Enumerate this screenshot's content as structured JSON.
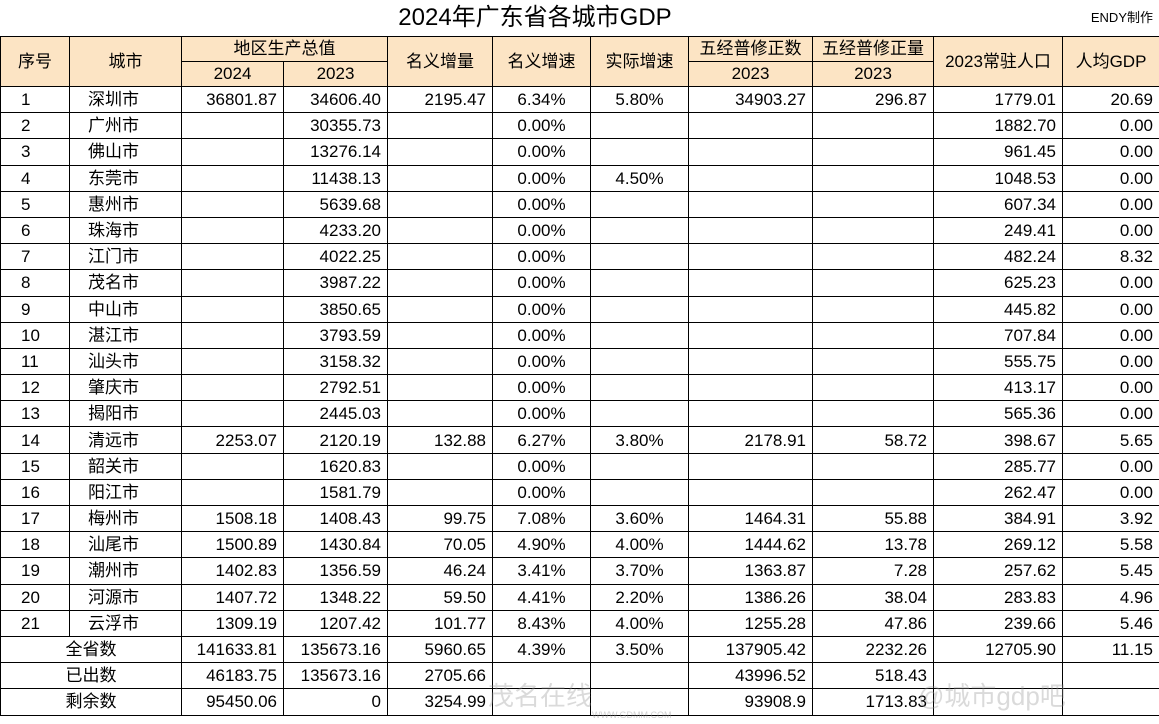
{
  "title": "2024年广东省各城市GDP",
  "credit": "ENDY制作",
  "headers": {
    "index": "序号",
    "city": "城市",
    "gdp": "地区生产总值",
    "gdp_2024": "2024",
    "gdp_2023": "2023",
    "nominal_increase": "名义增量",
    "nominal_growth": "名义增速",
    "real_growth": "实际增速",
    "revised_value": "五经普修正数",
    "revised_value_year": "2023",
    "revised_amount": "五经普修正量",
    "revised_amount_year": "2023",
    "population": "2023常驻人口",
    "per_capita": "人均GDP"
  },
  "rows": [
    [
      "1",
      "深圳市",
      "36801.87",
      "34606.40",
      "2195.47",
      "6.34%",
      "5.80%",
      "34903.27",
      "296.87",
      "1779.01",
      "20.69"
    ],
    [
      "2",
      "广州市",
      "",
      "30355.73",
      "",
      "0.00%",
      "",
      "",
      "",
      "1882.70",
      "0.00"
    ],
    [
      "3",
      "佛山市",
      "",
      "13276.14",
      "",
      "0.00%",
      "",
      "",
      "",
      "961.45",
      "0.00"
    ],
    [
      "4",
      "东莞市",
      "",
      "11438.13",
      "",
      "0.00%",
      "4.50%",
      "",
      "",
      "1048.53",
      "0.00"
    ],
    [
      "5",
      "惠州市",
      "",
      "5639.68",
      "",
      "0.00%",
      "",
      "",
      "",
      "607.34",
      "0.00"
    ],
    [
      "6",
      "珠海市",
      "",
      "4233.20",
      "",
      "0.00%",
      "",
      "",
      "",
      "249.41",
      "0.00"
    ],
    [
      "7",
      "江门市",
      "",
      "4022.25",
      "",
      "0.00%",
      "",
      "",
      "",
      "482.24",
      "8.32"
    ],
    [
      "8",
      "茂名市",
      "",
      "3987.22",
      "",
      "0.00%",
      "",
      "",
      "",
      "625.23",
      "0.00"
    ],
    [
      "9",
      "中山市",
      "",
      "3850.65",
      "",
      "0.00%",
      "",
      "",
      "",
      "445.82",
      "0.00"
    ],
    [
      "10",
      "湛江市",
      "",
      "3793.59",
      "",
      "0.00%",
      "",
      "",
      "",
      "707.84",
      "0.00"
    ],
    [
      "11",
      "汕头市",
      "",
      "3158.32",
      "",
      "0.00%",
      "",
      "",
      "",
      "555.75",
      "0.00"
    ],
    [
      "12",
      "肇庆市",
      "",
      "2792.51",
      "",
      "0.00%",
      "",
      "",
      "",
      "413.17",
      "0.00"
    ],
    [
      "13",
      "揭阳市",
      "",
      "2445.03",
      "",
      "0.00%",
      "",
      "",
      "",
      "565.36",
      "0.00"
    ],
    [
      "14",
      "清远市",
      "2253.07",
      "2120.19",
      "132.88",
      "6.27%",
      "3.80%",
      "2178.91",
      "58.72",
      "398.67",
      "5.65"
    ],
    [
      "15",
      "韶关市",
      "",
      "1620.83",
      "",
      "0.00%",
      "",
      "",
      "",
      "285.77",
      "0.00"
    ],
    [
      "16",
      "阳江市",
      "",
      "1581.79",
      "",
      "0.00%",
      "",
      "",
      "",
      "262.47",
      "0.00"
    ],
    [
      "17",
      "梅州市",
      "1508.18",
      "1408.43",
      "99.75",
      "7.08%",
      "3.60%",
      "1464.31",
      "55.88",
      "384.91",
      "3.92"
    ],
    [
      "18",
      "汕尾市",
      "1500.89",
      "1430.84",
      "70.05",
      "4.90%",
      "4.00%",
      "1444.62",
      "13.78",
      "269.12",
      "5.58"
    ],
    [
      "19",
      "潮州市",
      "1402.83",
      "1356.59",
      "46.24",
      "3.41%",
      "3.70%",
      "1363.87",
      "7.28",
      "257.62",
      "5.45"
    ],
    [
      "20",
      "河源市",
      "1407.72",
      "1348.22",
      "59.50",
      "4.41%",
      "2.20%",
      "1386.26",
      "38.04",
      "283.83",
      "4.96"
    ],
    [
      "21",
      "云浮市",
      "1309.19",
      "1207.42",
      "101.77",
      "8.43%",
      "4.00%",
      "1255.28",
      "47.86",
      "239.66",
      "5.46"
    ]
  ],
  "summary": [
    [
      "全省数",
      "141633.81",
      "135673.16",
      "5960.65",
      "4.39%",
      "3.50%",
      "137905.42",
      "2232.26",
      "12705.90",
      "11.15"
    ],
    [
      "已出数",
      "46183.75",
      "135673.16",
      "2705.66",
      "",
      "",
      "43996.52",
      "518.43",
      "",
      ""
    ],
    [
      "剩余数",
      "95450.06",
      "0",
      "3254.99",
      "",
      "",
      "93908.9",
      "1713.83",
      "",
      ""
    ]
  ],
  "watermarks": {
    "center": "茂名在线",
    "center_url": "WWW.GDMM.COM",
    "right": "@城市gdp吧"
  }
}
